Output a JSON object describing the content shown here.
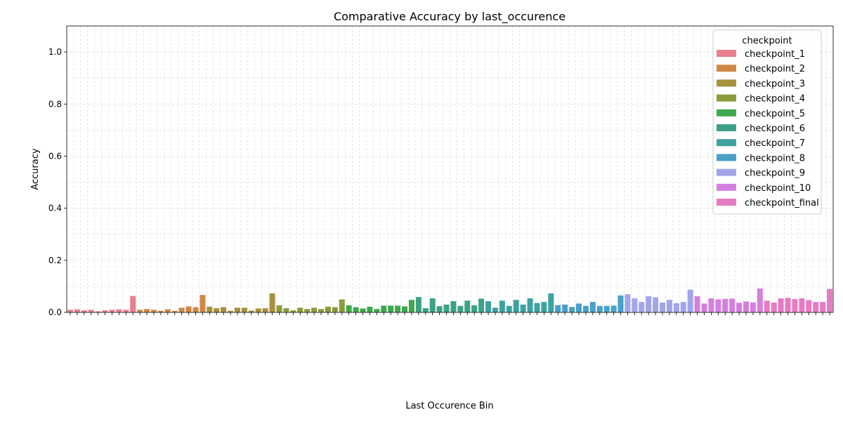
{
  "chart_data": {
    "type": "bar",
    "title": "Comparative Accuracy by last_occurence",
    "xlabel": "Last Occurence Bin",
    "ylabel": "Accuracy",
    "ylim": [
      0,
      1.1
    ],
    "yticks": [
      "0.0",
      "0.2",
      "0.4",
      "0.6",
      "0.8",
      "1.0"
    ],
    "grid": true,
    "legend": {
      "title": "checkpoint",
      "placement": "top-right"
    },
    "series": [
      {
        "name": "checkpoint_1",
        "color": "#e8808f",
        "values": [
          0.01,
          0.012,
          0.008,
          0.01,
          0.004,
          0.008,
          0.01,
          0.012,
          0.01,
          0.063
        ]
      },
      {
        "name": "checkpoint_2",
        "color": "#cf8845",
        "values": [
          0.01,
          0.013,
          0.01,
          0.006,
          0.012,
          0.006,
          0.018,
          0.023,
          0.02,
          0.067
        ]
      },
      {
        "name": "checkpoint_3",
        "color": "#a8903e",
        "values": [
          0.022,
          0.016,
          0.02,
          0.006,
          0.018,
          0.018,
          0.007,
          0.015,
          0.016,
          0.073
        ]
      },
      {
        "name": "checkpoint_4",
        "color": "#8b9b3c",
        "values": [
          0.027,
          0.016,
          0.008,
          0.018,
          0.013,
          0.018,
          0.013,
          0.022,
          0.02,
          0.05
        ]
      },
      {
        "name": "checkpoint_5",
        "color": "#3fa84f",
        "values": [
          0.027,
          0.02,
          0.015,
          0.022,
          0.013,
          0.026,
          0.026,
          0.026,
          0.023,
          0.048
        ]
      },
      {
        "name": "checkpoint_6",
        "color": "#3ca187",
        "values": [
          0.059,
          0.016,
          0.054,
          0.024,
          0.03,
          0.043,
          0.025,
          0.045,
          0.027,
          0.053
        ]
      },
      {
        "name": "checkpoint_7",
        "color": "#3ea2a0",
        "values": [
          0.043,
          0.018,
          0.045,
          0.025,
          0.048,
          0.03,
          0.054,
          0.036,
          0.04,
          0.073
        ]
      },
      {
        "name": "checkpoint_8",
        "color": "#4aa0c8",
        "values": [
          0.028,
          0.03,
          0.021,
          0.034,
          0.025,
          0.04,
          0.025,
          0.025,
          0.026,
          0.065
        ]
      },
      {
        "name": "checkpoint_9",
        "color": "#a1a6ea",
        "values": [
          0.07,
          0.054,
          0.04,
          0.062,
          0.058,
          0.038,
          0.048,
          0.035,
          0.04,
          0.087
        ]
      },
      {
        "name": "checkpoint_10",
        "color": "#d47fe0",
        "values": [
          0.062,
          0.034,
          0.054,
          0.05,
          0.052,
          0.053,
          0.037,
          0.042,
          0.038,
          0.092
        ]
      },
      {
        "name": "checkpoint_final",
        "color": "#e67ac5",
        "values": [
          0.045,
          0.038,
          0.054,
          0.056,
          0.051,
          0.054,
          0.047,
          0.04,
          0.04,
          0.09
        ]
      }
    ]
  }
}
